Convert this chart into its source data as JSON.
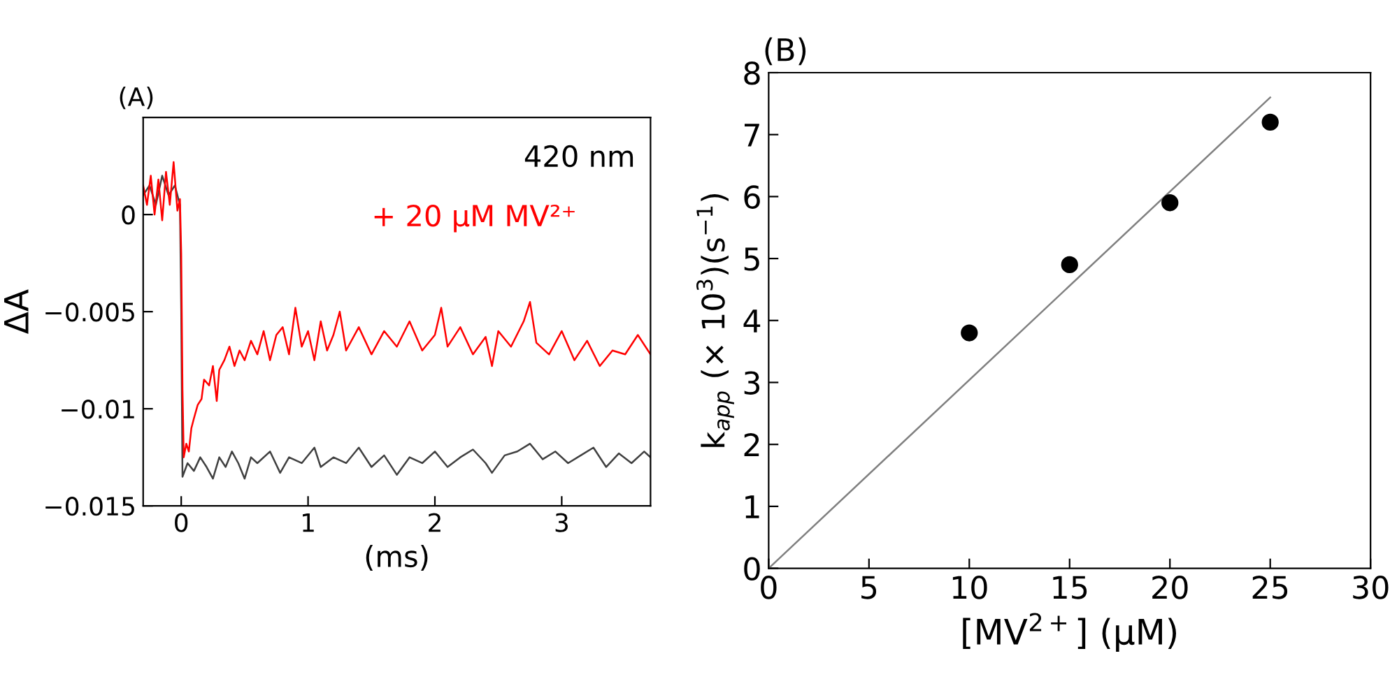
{
  "chart_data": [
    {
      "type": "line",
      "title": "(A)",
      "xlabel": "(ms)",
      "ylabel": "ΔA",
      "annotations": [
        "420 nm"
      ],
      "xlim": [
        -0.3,
        3.7
      ],
      "xticks": [
        0,
        1,
        2,
        3
      ],
      "ylim": [
        -0.015,
        0.005
      ],
      "yticks": [
        {
          "value": 0,
          "label": "0"
        },
        {
          "value": -0.005,
          "label": "−0.005"
        },
        {
          "value": -0.01,
          "label": "−0.01"
        },
        {
          "value": -0.015,
          "label": "−0.015"
        }
      ],
      "grid": false,
      "legend": false,
      "marker": "none",
      "line_style": "solid",
      "series": [
        {
          "color": "#404040",
          "x": [
            -0.3,
            -0.25,
            -0.2,
            -0.15,
            -0.1,
            -0.05,
            -0.01,
            0.0,
            0.01,
            0.05,
            0.1,
            0.15,
            0.2,
            0.25,
            0.3,
            0.35,
            0.4,
            0.45,
            0.5,
            0.55,
            0.6,
            0.7,
            0.78,
            0.85,
            0.95,
            1.05,
            1.1,
            1.2,
            1.3,
            1.4,
            1.5,
            1.6,
            1.7,
            1.8,
            1.9,
            2.0,
            2.1,
            2.2,
            2.3,
            2.4,
            2.45,
            2.55,
            2.65,
            2.75,
            2.85,
            2.95,
            3.05,
            3.15,
            3.25,
            3.35,
            3.45,
            3.55,
            3.65,
            3.7
          ],
          "values": [
            0.001,
            0.0015,
            0.0005,
            0.002,
            0.001,
            0.0015,
            0.0005,
            -0.005,
            -0.0135,
            -0.0128,
            -0.0132,
            -0.0125,
            -0.013,
            -0.0136,
            -0.0125,
            -0.013,
            -0.0122,
            -0.0128,
            -0.0136,
            -0.0125,
            -0.0128,
            -0.0122,
            -0.0133,
            -0.0125,
            -0.0128,
            -0.012,
            -0.013,
            -0.0125,
            -0.0128,
            -0.012,
            -0.013,
            -0.0124,
            -0.0134,
            -0.0125,
            -0.0128,
            -0.0122,
            -0.013,
            -0.0125,
            -0.0121,
            -0.0128,
            -0.0133,
            -0.0124,
            -0.0122,
            -0.0118,
            -0.0126,
            -0.0122,
            -0.0128,
            -0.0124,
            -0.012,
            -0.013,
            -0.0123,
            -0.0128,
            -0.0122,
            -0.0125
          ]
        },
        {
          "name": "+ 20 μM MV²⁺",
          "color": "#ff0000",
          "x": [
            -0.3,
            -0.27,
            -0.24,
            -0.21,
            -0.18,
            -0.15,
            -0.12,
            -0.09,
            -0.06,
            -0.03,
            -0.01,
            0.0,
            0.01,
            0.02,
            0.04,
            0.06,
            0.08,
            0.1,
            0.13,
            0.16,
            0.18,
            0.22,
            0.25,
            0.28,
            0.3,
            0.34,
            0.38,
            0.42,
            0.46,
            0.5,
            0.55,
            0.6,
            0.65,
            0.7,
            0.75,
            0.8,
            0.85,
            0.9,
            0.95,
            1.0,
            1.05,
            1.1,
            1.15,
            1.2,
            1.25,
            1.3,
            1.4,
            1.5,
            1.6,
            1.7,
            1.8,
            1.9,
            2.0,
            2.05,
            2.1,
            2.2,
            2.3,
            2.4,
            2.45,
            2.5,
            2.6,
            2.7,
            2.75,
            2.8,
            2.9,
            3.0,
            3.1,
            3.2,
            3.3,
            3.4,
            3.5,
            3.6,
            3.7
          ],
          "values": [
            0.0015,
            0.0005,
            0.002,
            0.0,
            0.0018,
            -0.0003,
            0.0022,
            0.0005,
            0.0027,
            0.0002,
            0.0008,
            -0.002,
            -0.009,
            -0.0125,
            -0.0118,
            -0.0122,
            -0.011,
            -0.0105,
            -0.0098,
            -0.0095,
            -0.0085,
            -0.0088,
            -0.0078,
            -0.0096,
            -0.008,
            -0.0075,
            -0.0068,
            -0.0078,
            -0.007,
            -0.0075,
            -0.0065,
            -0.0072,
            -0.006,
            -0.0075,
            -0.0062,
            -0.0058,
            -0.0072,
            -0.0048,
            -0.0068,
            -0.006,
            -0.0075,
            -0.0055,
            -0.007,
            -0.0062,
            -0.005,
            -0.007,
            -0.0058,
            -0.0072,
            -0.006,
            -0.0068,
            -0.0055,
            -0.007,
            -0.0062,
            -0.0048,
            -0.0068,
            -0.0058,
            -0.0072,
            -0.0063,
            -0.0078,
            -0.006,
            -0.0068,
            -0.0055,
            -0.0045,
            -0.0066,
            -0.0072,
            -0.006,
            -0.0075,
            -0.0065,
            -0.0078,
            -0.007,
            -0.0072,
            -0.0062,
            -0.0072
          ]
        }
      ]
    },
    {
      "type": "scatter",
      "title": "(B)",
      "xlabel": "[MV$^{2+}$] (μM)",
      "ylabel": "k$_{app}$ (× 10$^{3}$)(s$^{−1}$)",
      "xlim": [
        0,
        30
      ],
      "xticks": [
        0,
        5,
        10,
        15,
        20,
        25,
        30
      ],
      "ylim": [
        0,
        8
      ],
      "yticks": [
        0,
        1,
        2,
        3,
        4,
        5,
        6,
        7,
        8
      ],
      "grid": false,
      "legend": false,
      "series": [
        {
          "type": "line",
          "color": "#808080",
          "x": [
            0,
            25
          ],
          "values": [
            0,
            7.6
          ],
          "marker": "none",
          "line_style": "solid"
        },
        {
          "type": "scatter",
          "color": "#000000",
          "x": [
            10,
            15,
            20,
            25
          ],
          "values": [
            3.8,
            4.9,
            5.9,
            7.2
          ],
          "marker": "circle"
        }
      ]
    }
  ]
}
